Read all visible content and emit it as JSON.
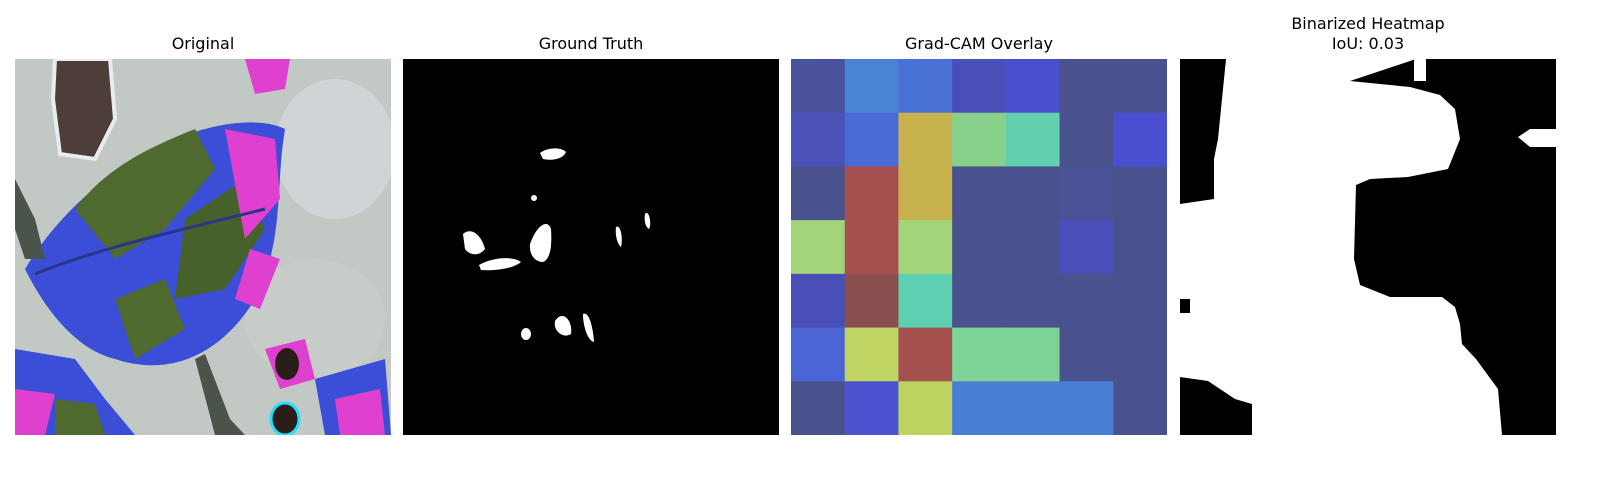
{
  "panels": {
    "original": {
      "title": "Original"
    },
    "ground_truth": {
      "title": "Ground Truth"
    },
    "gradcam": {
      "title": "Grad-CAM Overlay",
      "grid_colors": [
        [
          "#4a529e",
          "#4a82d4",
          "#4a72d4",
          "#4a4eb8",
          "#4a4ed0",
          "#4a528e",
          "#4a528e"
        ],
        [
          "#4a52b8",
          "#4a6ad4",
          "#c8b24e",
          "#86d08a",
          "#62d0ae",
          "#4a528e",
          "#4a4ed0"
        ],
        [
          "#4a528e",
          "#a4504e",
          "#c8b24e",
          "#4a528e",
          "#4a528e",
          "#4a5296",
          "#4a528e"
        ],
        [
          "#a4d47a",
          "#a4504e",
          "#a4d47a",
          "#4a528e",
          "#4a528e",
          "#4a4eb8",
          "#4a528e"
        ],
        [
          "#4a4eb8",
          "#8a4e4e",
          "#5ed0b2",
          "#4a528e",
          "#4a528e",
          "#4a528e",
          "#4a528e"
        ],
        [
          "#4a66d4",
          "#c0d464",
          "#a4504e",
          "#7ed498",
          "#7ed498",
          "#4a528e",
          "#4a528e"
        ],
        [
          "#4a528e",
          "#4a52d0",
          "#bed462",
          "#4a7ed4",
          "#4a7ed4",
          "#4a7ed4",
          "#4a528e"
        ]
      ]
    },
    "binarized": {
      "title_line1": "Binarized Heatmap",
      "title_line2": "IoU: 0.03"
    }
  }
}
